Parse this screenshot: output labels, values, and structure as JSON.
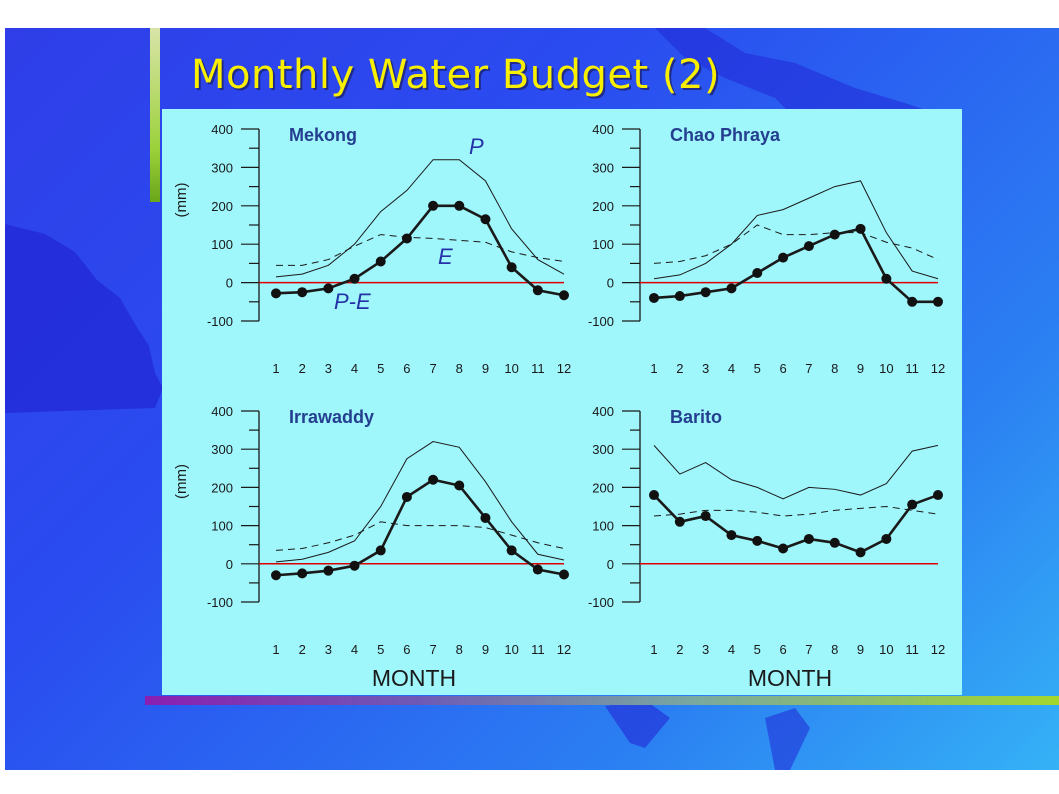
{
  "slide": {
    "title": "Monthly Water Budget (2)"
  },
  "colors": {
    "title": "#f8f000",
    "panel_background": "#9ff6fb",
    "zero_line": "#dd0000",
    "panel_title": "#243f8f"
  },
  "chart_data": [
    {
      "type": "line",
      "title": "Mekong",
      "ylabel": "(mm)",
      "xlabel": "",
      "ylim": [
        -100,
        400
      ],
      "yticks": [
        -100,
        0,
        100,
        200,
        300,
        400
      ],
      "x": [
        1,
        2,
        3,
        4,
        5,
        6,
        7,
        8,
        9,
        10,
        11,
        12
      ],
      "annotations": [
        "P",
        "E",
        "P-E"
      ],
      "series": [
        {
          "name": "P",
          "style": "solid-thin",
          "values": [
            15,
            22,
            45,
            100,
            185,
            240,
            320,
            320,
            265,
            140,
            60,
            22
          ]
        },
        {
          "name": "E",
          "style": "dashed",
          "values": [
            45,
            45,
            60,
            95,
            125,
            118,
            115,
            110,
            105,
            80,
            65,
            55
          ]
        },
        {
          "name": "P-E",
          "style": "bold-markers",
          "values": [
            -28,
            -25,
            -15,
            10,
            55,
            115,
            200,
            200,
            165,
            40,
            -20,
            -33
          ]
        }
      ]
    },
    {
      "type": "line",
      "title": "Chao Phraya",
      "ylabel": "",
      "xlabel": "",
      "ylim": [
        -100,
        400
      ],
      "yticks": [
        -100,
        0,
        100,
        200,
        300,
        400
      ],
      "x": [
        1,
        2,
        3,
        4,
        5,
        6,
        7,
        8,
        9,
        10,
        11,
        12
      ],
      "series": [
        {
          "name": "",
          "style": "solid-thin",
          "values": [
            10,
            20,
            50,
            100,
            175,
            190,
            220,
            250,
            265,
            130,
            30,
            10
          ]
        },
        {
          "name": "",
          "style": "dashed",
          "values": [
            50,
            55,
            70,
            100,
            150,
            125,
            125,
            130,
            130,
            105,
            90,
            60
          ]
        },
        {
          "name": "",
          "style": "bold-markers",
          "values": [
            -40,
            -35,
            -25,
            -15,
            25,
            65,
            95,
            125,
            140,
            10,
            -50,
            -50
          ]
        }
      ]
    },
    {
      "type": "line",
      "title": "Irrawaddy",
      "ylabel": "(mm)",
      "xlabel": "MONTH",
      "ylim": [
        -100,
        400
      ],
      "yticks": [
        -100,
        0,
        100,
        200,
        300,
        400
      ],
      "x": [
        1,
        2,
        3,
        4,
        5,
        6,
        7,
        8,
        9,
        10,
        11,
        12
      ],
      "xticks": [
        "1",
        "2",
        "3",
        "4",
        "5",
        "6",
        "7",
        "8",
        "9",
        "10",
        "11",
        "12"
      ],
      "series": [
        {
          "name": "",
          "style": "solid-thin",
          "values": [
            5,
            12,
            30,
            60,
            150,
            275,
            320,
            305,
            215,
            110,
            25,
            10
          ]
        },
        {
          "name": "",
          "style": "dashed",
          "values": [
            35,
            40,
            55,
            75,
            110,
            100,
            100,
            100,
            95,
            75,
            55,
            40
          ]
        },
        {
          "name": "",
          "style": "bold-markers",
          "values": [
            -30,
            -25,
            -18,
            -5,
            35,
            175,
            220,
            205,
            120,
            35,
            -15,
            -28
          ]
        }
      ]
    },
    {
      "type": "line",
      "title": "Barito",
      "ylabel": "",
      "xlabel": "MONTH",
      "ylim": [
        -100,
        400
      ],
      "yticks": [
        -100,
        0,
        100,
        200,
        300,
        400
      ],
      "x": [
        1,
        2,
        3,
        4,
        5,
        6,
        7,
        8,
        9,
        10,
        11,
        12
      ],
      "xticks": [
        "1",
        "2",
        "3",
        "4",
        "5",
        "6",
        "7",
        "8",
        "9",
        "10",
        "11",
        "12"
      ],
      "series": [
        {
          "name": "",
          "style": "solid-thin",
          "values": [
            310,
            235,
            265,
            220,
            200,
            170,
            200,
            195,
            180,
            210,
            295,
            310
          ]
        },
        {
          "name": "",
          "style": "dashed",
          "values": [
            125,
            130,
            140,
            140,
            135,
            125,
            130,
            140,
            145,
            150,
            140,
            130
          ]
        },
        {
          "name": "",
          "style": "bold-markers",
          "values": [
            180,
            110,
            125,
            75,
            60,
            40,
            65,
            55,
            30,
            65,
            155,
            180
          ]
        }
      ]
    }
  ]
}
